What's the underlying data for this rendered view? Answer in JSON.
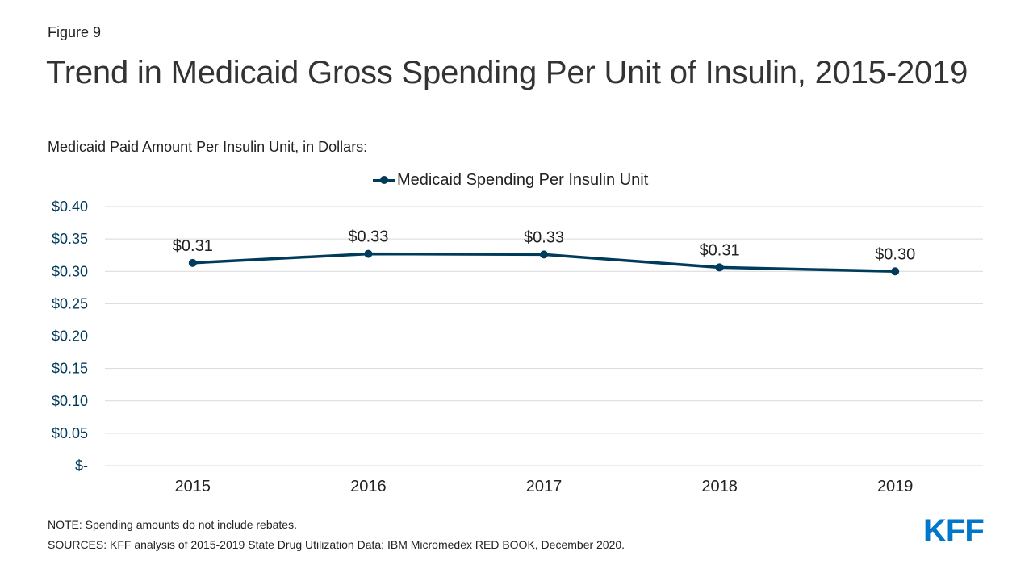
{
  "figure_label": "Figure 9",
  "title": "Trend in Medicaid Gross Spending Per Unit of Insulin, 2015-2019",
  "subtitle": "Medicaid Paid Amount Per Insulin Unit, in Dollars:",
  "note": "NOTE: Spending amounts do not include rebates.",
  "sources": "SOURCES: KFF analysis of 2015-2019 State Drug Utilization Data; IBM Micromedex RED BOOK, December 2020.",
  "logo_text": "KFF",
  "colors": {
    "series": "#003B5C",
    "axis_labels": "#003B5C",
    "grid": "#D9D9D9",
    "logo": "#0077C8"
  },
  "chart_data": {
    "type": "line",
    "categories": [
      "2015",
      "2016",
      "2017",
      "2018",
      "2019"
    ],
    "series": [
      {
        "name": "Medicaid Spending Per Insulin Unit",
        "values": [
          0.313,
          0.327,
          0.326,
          0.306,
          0.3
        ],
        "labels": [
          "$0.31",
          "$0.33",
          "$0.33",
          "$0.31",
          "$0.30"
        ]
      }
    ],
    "ylim": [
      0,
      0.4
    ],
    "yticks": [
      0,
      0.05,
      0.1,
      0.15,
      0.2,
      0.25,
      0.3,
      0.35,
      0.4
    ],
    "ytick_labels": [
      "$-",
      "$0.05",
      "$0.10",
      "$0.15",
      "$0.20",
      "$0.25",
      "$0.30",
      "$0.35",
      "$0.40"
    ],
    "grid": true,
    "legend": "top-center",
    "markers": true
  }
}
